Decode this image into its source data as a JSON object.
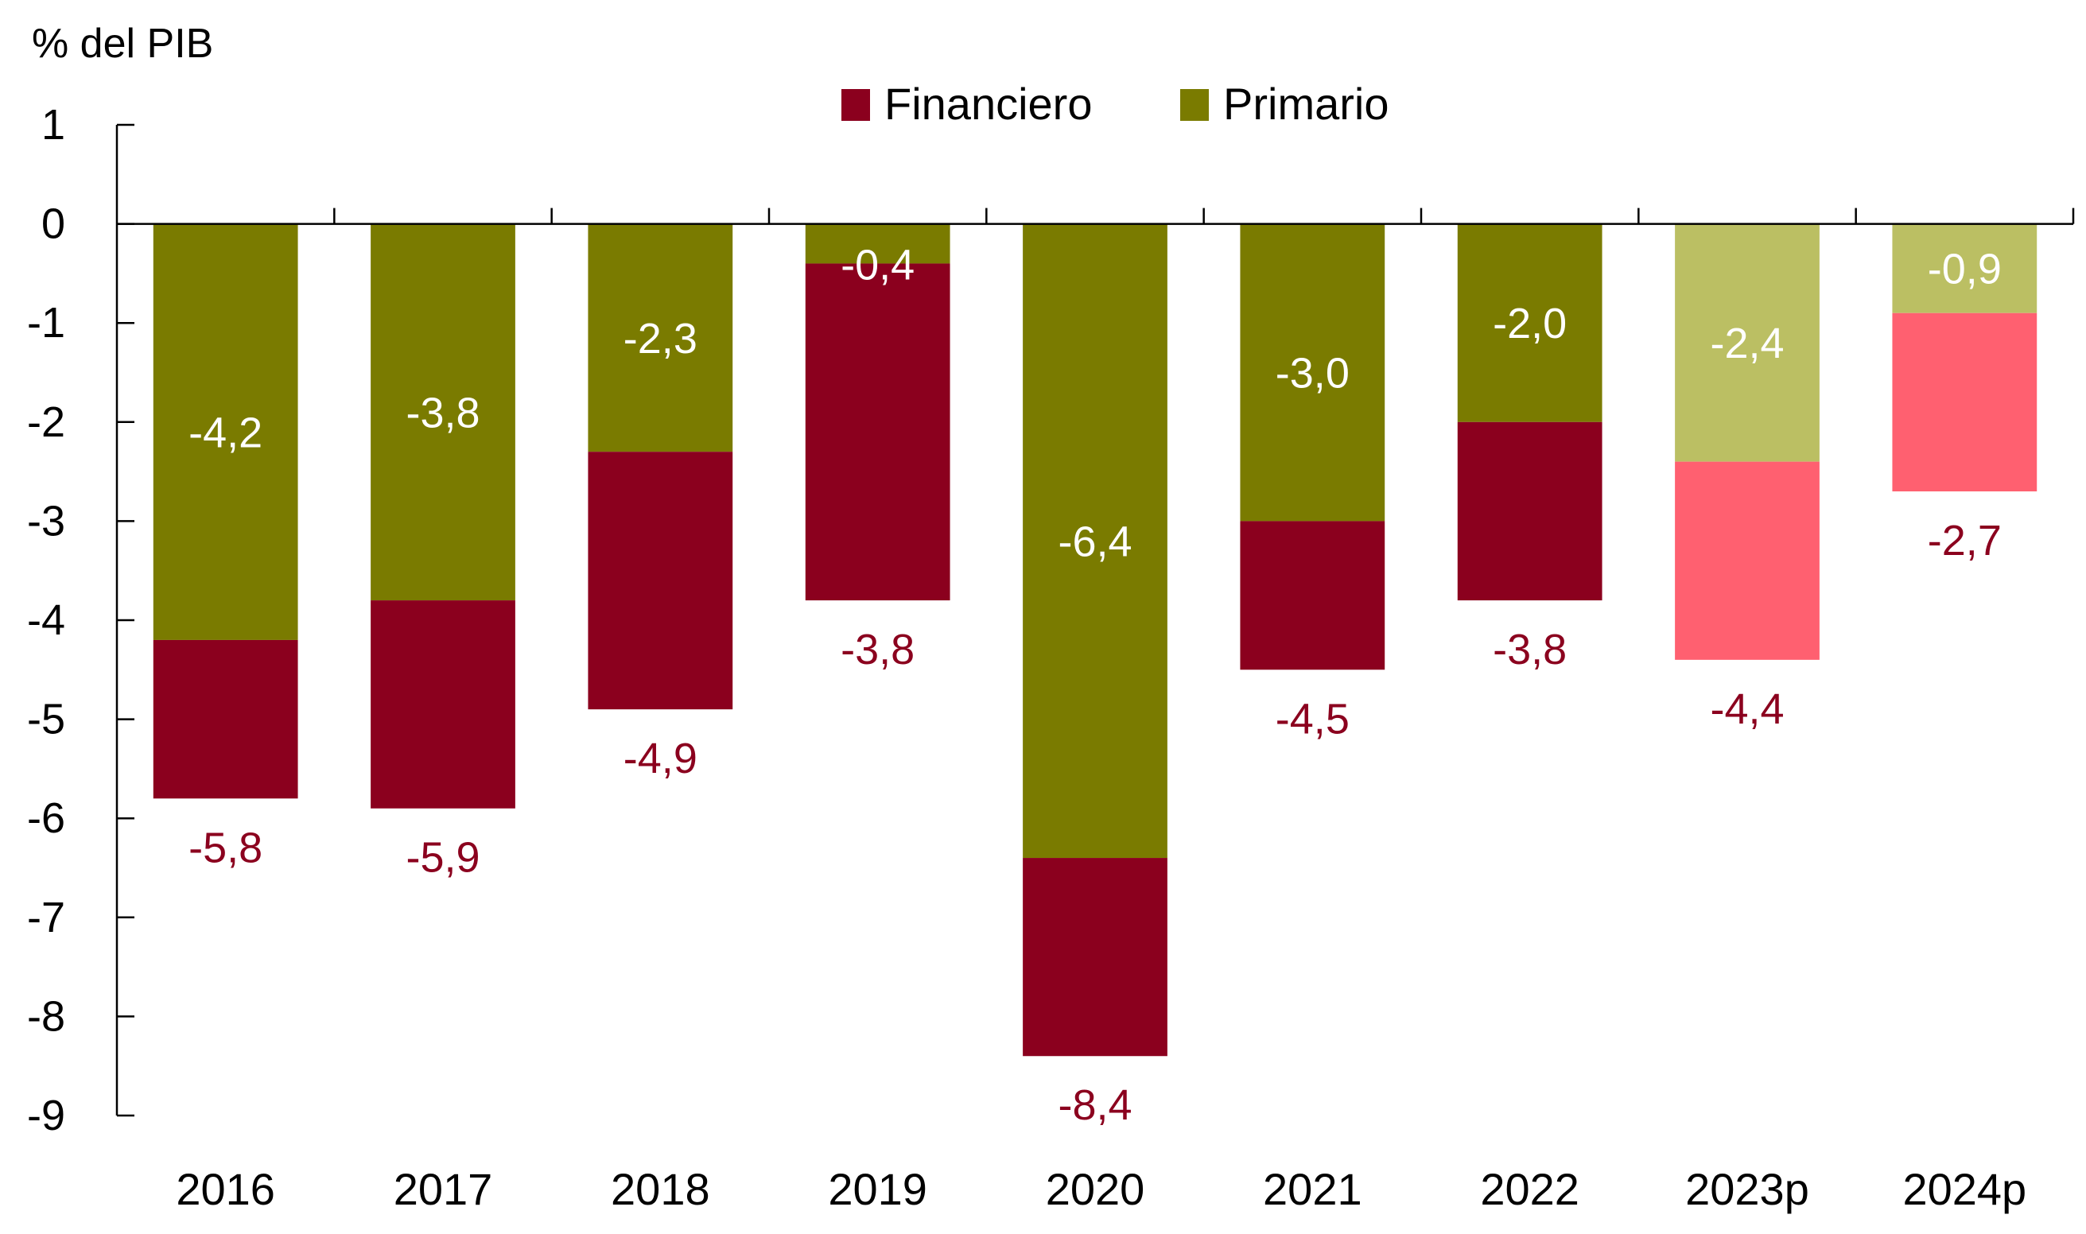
{
  "chart_data": {
    "type": "bar",
    "stacked": true,
    "title": "% del PIB",
    "xlabel": "",
    "ylabel": "% del PIB",
    "ylim": [
      -9,
      1
    ],
    "yticks": [
      1,
      0,
      -1,
      -2,
      -3,
      -4,
      -5,
      -6,
      -7,
      -8,
      -9
    ],
    "grid": false,
    "legend_position": "top-center",
    "categories": [
      "2016",
      "2017",
      "2018",
      "2019",
      "2020",
      "2021",
      "2022",
      "2023p",
      "2024p"
    ],
    "projected": [
      false,
      false,
      false,
      false,
      false,
      false,
      false,
      true,
      true
    ],
    "series": [
      {
        "name": "Financiero",
        "color": "#8B001E",
        "projected_color": "#FF6070",
        "label_color": "#8B001E",
        "values": [
          -5.8,
          -5.9,
          -4.9,
          -3.8,
          -8.4,
          -4.5,
          -3.8,
          -4.4,
          -2.7
        ],
        "labels": [
          "-5,8",
          "-5,9",
          "-4,9",
          "-3,8",
          "-8,4",
          "-4,5",
          "-3,8",
          "-4,4",
          "-2,7"
        ]
      },
      {
        "name": "Primario",
        "color": "#7A7B00",
        "projected_color": "#BBBF63",
        "label_color": "#FFFFFF",
        "values": [
          -4.2,
          -3.8,
          -2.3,
          -0.4,
          -6.4,
          -3.0,
          -2.0,
          -2.4,
          -0.9
        ],
        "labels": [
          "-4,2",
          "-3,8",
          "-2,3",
          "-0,4",
          "-6,4",
          "-3,0",
          "-2,0",
          "-2,4",
          "-0,9"
        ]
      }
    ],
    "legend": [
      {
        "label": "Financiero",
        "color": "#8B001E"
      },
      {
        "label": "Primario",
        "color": "#7A7B00"
      }
    ],
    "note": "Financiero balance shown as total bar extent; Primario segment shown from zero"
  }
}
